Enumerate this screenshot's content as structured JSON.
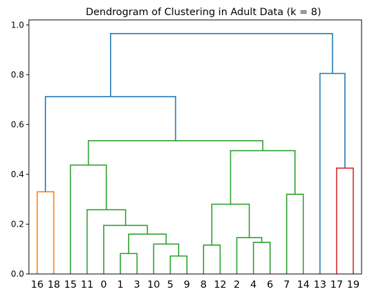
{
  "chart_data": {
    "type": "dendrogram",
    "title": "Dendrogram of Clustering in Adult Data (k = 8)",
    "xlabel": "",
    "ylabel": "",
    "ylim": [
      0,
      1.02
    ],
    "yticks": [
      "0.0",
      "0.2",
      "0.4",
      "0.6",
      "0.8",
      "1.0"
    ],
    "leaf_labels": [
      "16",
      "18",
      "15",
      "11",
      "0",
      "1",
      "3",
      "10",
      "5",
      "9",
      "8",
      "12",
      "2",
      "4",
      "6",
      "7",
      "14",
      "13",
      "17",
      "19"
    ],
    "grid": false,
    "legend": "none",
    "colors": {
      "above_threshold": "#1f77b4",
      "cluster_orange": "#ff7f0e",
      "cluster_green": "#2ca02c",
      "cluster_red": "#d62728"
    },
    "links": [
      {
        "left": "16",
        "right": "18",
        "height": 0.33,
        "color": "cluster_orange"
      },
      {
        "left": "1",
        "right": "3",
        "height": 0.082,
        "color": "cluster_green"
      },
      {
        "left": "5",
        "right": "9",
        "height": 0.072,
        "color": "cluster_green"
      },
      {
        "left": "10",
        "right": "5+9",
        "height": 0.12,
        "color": "cluster_green"
      },
      {
        "left": "1+3",
        "right": "10+5+9",
        "height": 0.16,
        "color": "cluster_green"
      },
      {
        "left": "0",
        "right": "1+3+10+5+9",
        "height": 0.195,
        "color": "cluster_green"
      },
      {
        "left": "11",
        "right": "0+1+3+10+5+9",
        "height": 0.258,
        "color": "cluster_green"
      },
      {
        "left": "15",
        "right": "11+0+1+3+10+5+9",
        "height": 0.437,
        "color": "cluster_green"
      },
      {
        "left": "8",
        "right": "12",
        "height": 0.116,
        "color": "cluster_green"
      },
      {
        "left": "4",
        "right": "6",
        "height": 0.127,
        "color": "cluster_green"
      },
      {
        "left": "2",
        "right": "4+6",
        "height": 0.146,
        "color": "cluster_green"
      },
      {
        "left": "8+12",
        "right": "2+4+6",
        "height": 0.28,
        "color": "cluster_green"
      },
      {
        "left": "7",
        "right": "14",
        "height": 0.32,
        "color": "cluster_green"
      },
      {
        "left": "8+12+2+4+6",
        "right": "7+14",
        "height": 0.495,
        "color": "cluster_green"
      },
      {
        "left": "15+11+0+1+3+10+5+9",
        "right": "8+12+2+4+6+7+14",
        "height": 0.535,
        "color": "cluster_green"
      },
      {
        "left": "16+18",
        "right": "15+...+14",
        "height": 0.712,
        "color": "above_threshold"
      },
      {
        "left": "17",
        "right": "19",
        "height": 0.425,
        "color": "cluster_red"
      },
      {
        "left": "13",
        "right": "17+19",
        "height": 0.805,
        "color": "above_threshold"
      },
      {
        "left": "16+...+14",
        "right": "13+17+19",
        "height": 0.965,
        "color": "above_threshold"
      }
    ]
  }
}
